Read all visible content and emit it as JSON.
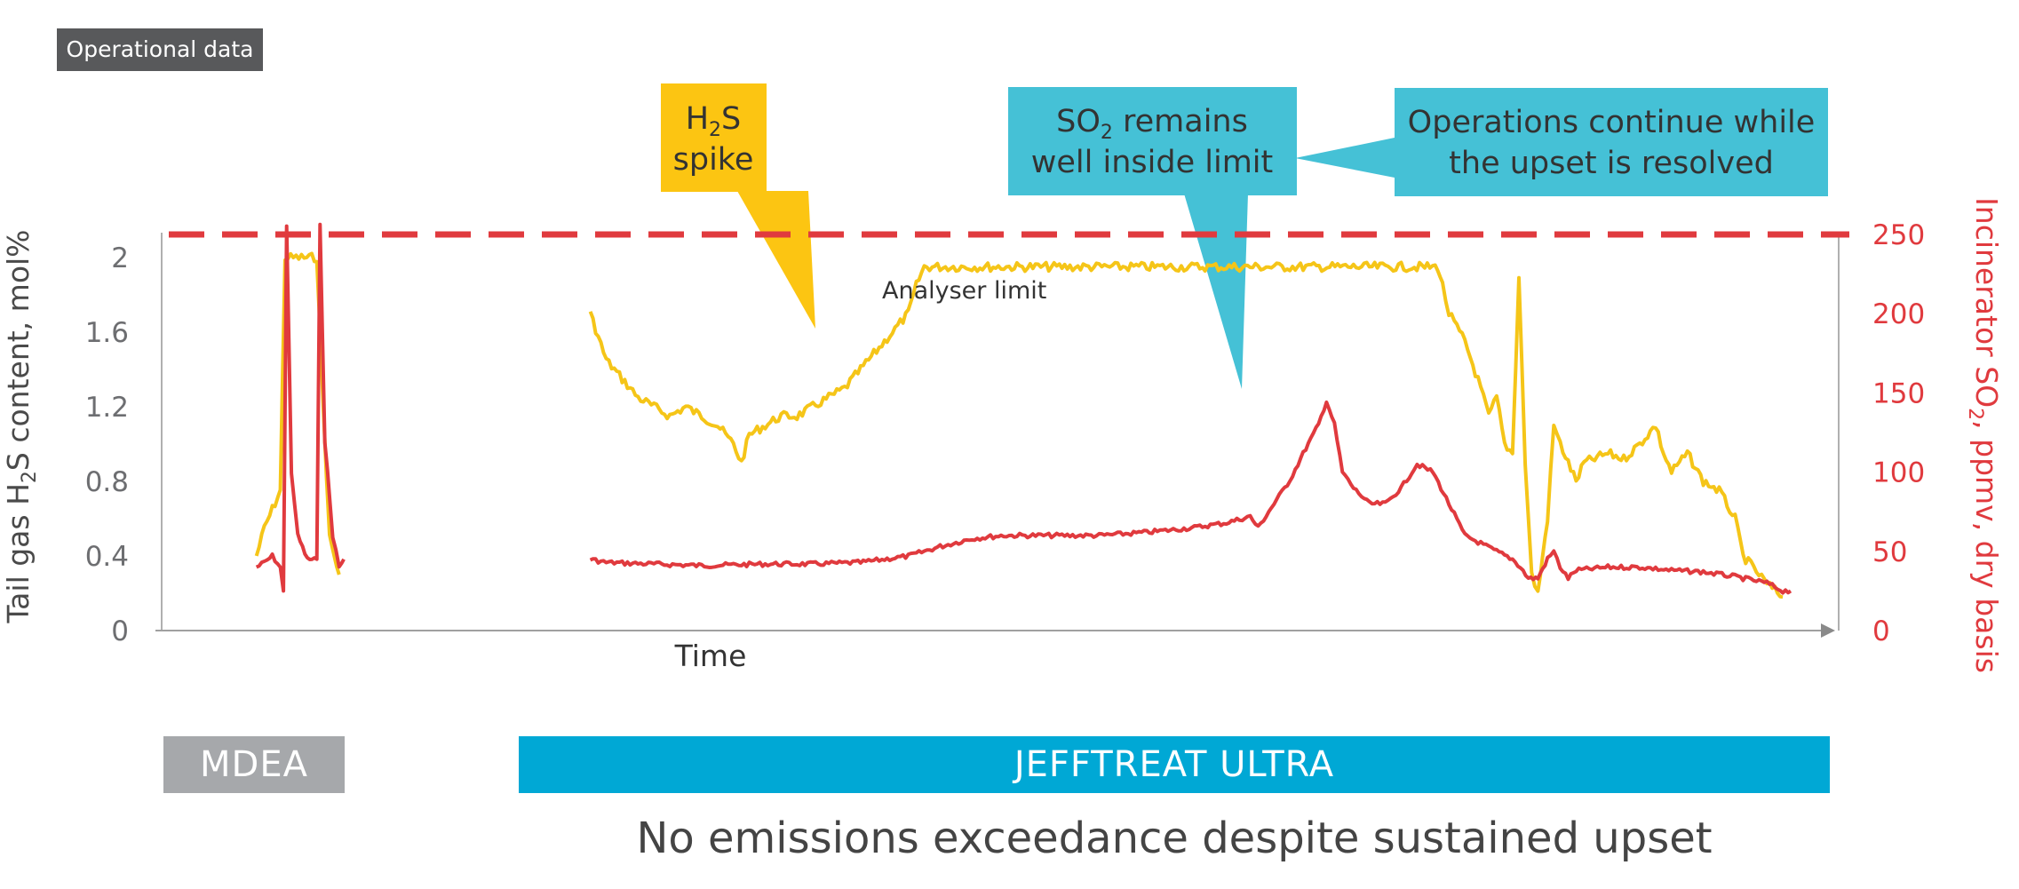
{
  "header": {
    "badge": "Operational data"
  },
  "chart_data": {
    "type": "line",
    "title": "",
    "xlabel": "Time",
    "ylabel_left_parts": [
      "Tail gas H",
      "2",
      "S content, mol%"
    ],
    "ylabel_right_parts": [
      "Incinerator SO",
      "2",
      ", ppmv, dry basis"
    ],
    "ylim_left": [
      0,
      2.1
    ],
    "ylim_right": [
      0,
      250
    ],
    "x_range": [
      0,
      100
    ],
    "left_ticks": [
      0,
      0.4,
      0.8,
      1.2,
      1.6,
      2
    ],
    "left_tick_labels": [
      "0",
      "0.4",
      "0.8",
      "1.2",
      "1.6",
      "2"
    ],
    "right_ticks": [
      0,
      50,
      100,
      150,
      200,
      250
    ],
    "right_tick_labels": [
      "0",
      "50",
      "100",
      "150",
      "200",
      "250"
    ],
    "reference_line": {
      "axis": "right",
      "value": 250,
      "style": "dashed",
      "color": "#e03a3e"
    },
    "series": [
      {
        "name": "Tail gas H2S content (mol%)",
        "axis": "left",
        "color": "#f5c518",
        "segments": [
          [
            [
              3,
              0.4
            ],
            [
              3.5,
              0.55
            ],
            [
              4,
              0.65
            ],
            [
              4.5,
              0.75
            ],
            [
              4.8,
              2.0
            ],
            [
              5.5,
              2.0
            ],
            [
              6,
              2.0
            ],
            [
              6.8,
              2.0
            ],
            [
              7.2,
              1.2
            ],
            [
              7.6,
              0.5
            ],
            [
              8.2,
              0.3
            ]
          ],
          [
            [
              24,
              1.7
            ],
            [
              25,
              1.45
            ],
            [
              26,
              1.35
            ],
            [
              27,
              1.25
            ],
            [
              28,
              1.2
            ],
            [
              29,
              1.15
            ],
            [
              30,
              1.2
            ],
            [
              31,
              1.15
            ],
            [
              32,
              1.1
            ],
            [
              33,
              1.0
            ],
            [
              33.5,
              0.9
            ],
            [
              34,
              1.05
            ],
            [
              35,
              1.1
            ],
            [
              36,
              1.15
            ],
            [
              37,
              1.15
            ],
            [
              38,
              1.2
            ],
            [
              39,
              1.25
            ],
            [
              40,
              1.3
            ],
            [
              41,
              1.4
            ],
            [
              42,
              1.5
            ],
            [
              43,
              1.6
            ],
            [
              44,
              1.7
            ],
            [
              44.5,
              1.85
            ],
            [
              45,
              1.95
            ],
            [
              46,
              1.95
            ],
            [
              55,
              1.95
            ],
            [
              65,
              1.95
            ],
            [
              75,
              1.95
            ],
            [
              77.3,
              1.95
            ],
            [
              77.6,
              1.85
            ],
            [
              78,
              1.7
            ],
            [
              79,
              1.55
            ],
            [
              80,
              1.3
            ],
            [
              80.5,
              1.15
            ],
            [
              81,
              1.25
            ],
            [
              81.5,
              1.0
            ],
            [
              82,
              0.95
            ],
            [
              82.4,
              1.9
            ],
            [
              82.8,
              0.9
            ],
            [
              83.2,
              0.3
            ],
            [
              83.6,
              0.2
            ],
            [
              84.2,
              0.6
            ],
            [
              84.6,
              1.1
            ],
            [
              85,
              1.0
            ],
            [
              85.5,
              0.9
            ],
            [
              86,
              0.8
            ],
            [
              86.5,
              0.9
            ],
            [
              88,
              0.95
            ],
            [
              89,
              0.92
            ],
            [
              90,
              1.0
            ],
            [
              91,
              1.1
            ],
            [
              91.5,
              0.95
            ],
            [
              92,
              0.85
            ],
            [
              93,
              0.95
            ],
            [
              94,
              0.8
            ],
            [
              95,
              0.75
            ],
            [
              96,
              0.6
            ],
            [
              96.5,
              0.4
            ],
            [
              97,
              0.35
            ],
            [
              98,
              0.25
            ],
            [
              99,
              0.18
            ]
          ]
        ]
      },
      {
        "name": "Incinerator SO2 (ppmv, dry basis)",
        "axis": "right",
        "color": "#e03a3e",
        "segments": [
          [
            [
              3,
              40
            ],
            [
              3.5,
              43
            ],
            [
              4,
              47
            ],
            [
              4.5,
              40
            ],
            [
              4.7,
              25
            ],
            [
              4.9,
              255
            ],
            [
              5.2,
              100
            ],
            [
              5.6,
              60
            ],
            [
              6.2,
              45
            ],
            [
              6.8,
              45
            ],
            [
              7,
              255
            ],
            [
              7.3,
              120
            ],
            [
              7.8,
              60
            ],
            [
              8.2,
              40
            ],
            [
              8.5,
              45
            ]
          ],
          [
            [
              24,
              45
            ],
            [
              25,
              43
            ],
            [
              28,
              42
            ],
            [
              31,
              41
            ],
            [
              35,
              42
            ],
            [
              38,
              42
            ],
            [
              41,
              43
            ],
            [
              44,
              47
            ],
            [
              46,
              53
            ],
            [
              48,
              58
            ],
            [
              50,
              60
            ],
            [
              53,
              60
            ],
            [
              56,
              60
            ],
            [
              59,
              62
            ],
            [
              62,
              65
            ],
            [
              64,
              68
            ],
            [
              65.5,
              72
            ],
            [
              66,
              65
            ],
            [
              67,
              80
            ],
            [
              68,
              95
            ],
            [
              69,
              115
            ],
            [
              69.8,
              130
            ],
            [
              70.3,
              145
            ],
            [
              70.8,
              130
            ],
            [
              71.3,
              100
            ],
            [
              72,
              90
            ],
            [
              73,
              80
            ],
            [
              74,
              80
            ],
            [
              75,
              90
            ],
            [
              76,
              105
            ],
            [
              77,
              100
            ],
            [
              78,
              80
            ],
            [
              79,
              60
            ],
            [
              80,
              55
            ],
            [
              81,
              50
            ],
            [
              82,
              45
            ],
            [
              82.5,
              40
            ],
            [
              83,
              33
            ],
            [
              83.6,
              33
            ],
            [
              84.2,
              45
            ],
            [
              84.6,
              50
            ],
            [
              85,
              40
            ],
            [
              85.5,
              33
            ],
            [
              86,
              38
            ],
            [
              88,
              40
            ],
            [
              90,
              40
            ],
            [
              92,
              38
            ],
            [
              94,
              37
            ],
            [
              96,
              34
            ],
            [
              98,
              30
            ],
            [
              99,
              25
            ],
            [
              99.5,
              25
            ]
          ]
        ]
      }
    ],
    "annotations": [
      {
        "text": "Analyser limit"
      }
    ]
  },
  "callouts": {
    "h2s_line1": "H",
    "h2s_sub": "2",
    "h2s_line1_end": "S",
    "h2s_line2": "spike",
    "so2_line1_a": "SO",
    "so2_line1_sub": "2",
    "so2_line1_b": " remains",
    "so2_line2": "well inside limit",
    "ops_line1": "Operations continue while",
    "ops_line2": "the upset is resolved"
  },
  "bands": {
    "mdea": "MDEA",
    "jefftreat": "JEFFTREAT ULTRA"
  },
  "footer": {
    "text": "No emissions exceedance despite sustained upset"
  },
  "colors": {
    "h2s": "#f5c518",
    "so2": "#e03a3e",
    "callout_yellow": "#fcc512",
    "callout_blue": "#45c1d6",
    "band_grey": "#a6a8ab",
    "band_blue": "#00a8d5"
  }
}
